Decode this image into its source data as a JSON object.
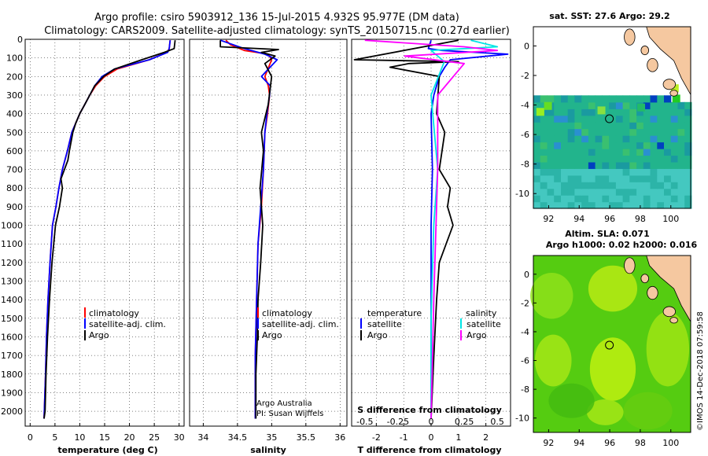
{
  "header": {
    "title_line1": "Argo profile: csiro 5903912_136 15-Jul-2015 4.932S 95.977E (DM data)",
    "title_line2": "Climatology: CARS2009. Satellite-adjusted climatology: synTS_20150715.nc (0.27d earlier)"
  },
  "colors": {
    "climatology": "#ff0000",
    "satellite": "#0000ff",
    "argo": "#000000",
    "sat_salinity": "#00e5e5",
    "argo_salinity": "#ff00ff",
    "land": "#f5c8a0",
    "sst_sea": "#22b48c",
    "sla_sea": "#66dd11"
  },
  "chart_data": [
    {
      "type": "line",
      "name": "temperature",
      "xlabel": "temperature (deg C)",
      "ylabel": "",
      "xlim": [
        -1,
        31
      ],
      "ylim": [
        2080,
        0
      ],
      "xticks": [
        "0",
        "5",
        "10",
        "15",
        "20",
        "25",
        "30"
      ],
      "yticks": [
        "0",
        "100",
        "200",
        "300",
        "400",
        "500",
        "600",
        "700",
        "800",
        "900",
        "1000",
        "1100",
        "1200",
        "1300",
        "1400",
        "1500",
        "1600",
        "1700",
        "1800",
        "1900",
        "2000"
      ],
      "legend": [
        "climatology",
        "satellite-adj. clim.",
        "Argo"
      ],
      "series": [
        {
          "name": "climatology",
          "x": [
            28.2,
            28.0,
            27.6,
            24,
            17.5,
            15,
            13.2,
            12,
            11,
            10,
            9.2,
            8.4,
            7.5,
            6.5,
            5.8,
            5.2,
            4.5,
            4.0,
            3.6,
            3.3,
            3.1,
            2.8
          ],
          "depth": [
            5,
            50,
            70,
            110,
            160,
            200,
            250,
            300,
            350,
            400,
            450,
            500,
            600,
            700,
            800,
            900,
            1000,
            1200,
            1400,
            1600,
            1800,
            2040
          ]
        },
        {
          "name": "satellite",
          "x": [
            28.2,
            28.0,
            27.7,
            24,
            17,
            14.5,
            13,
            12,
            11,
            10,
            9.2,
            8.4,
            7.5,
            6.5,
            5.8,
            5.2,
            4.5,
            4.0,
            3.6,
            3.3,
            3.1,
            2.8
          ],
          "depth": [
            5,
            50,
            70,
            110,
            160,
            200,
            250,
            300,
            350,
            400,
            450,
            500,
            600,
            700,
            800,
            900,
            1000,
            1200,
            1400,
            1600,
            1800,
            2040
          ]
        },
        {
          "name": "Argo",
          "x": [
            29.2,
            29.0,
            27,
            22.5,
            17,
            14.8,
            13,
            12,
            11,
            10,
            9.2,
            8.6,
            7.9,
            7.6,
            6.2,
            6.5,
            5.9,
            5.1,
            4.4,
            3.9,
            3.5,
            3.2,
            3.0,
            2.8
          ],
          "depth": [
            5,
            50,
            70,
            110,
            160,
            200,
            250,
            300,
            350,
            400,
            450,
            500,
            600,
            650,
            750,
            800,
            900,
            1000,
            1200,
            1400,
            1600,
            1800,
            2000,
            2040
          ]
        }
      ]
    },
    {
      "type": "line",
      "name": "salinity",
      "xlabel": "salinity",
      "xlim": [
        33.8,
        36.1
      ],
      "ylim": [
        2080,
        0
      ],
      "xticks": [
        "34",
        "34.5",
        "35",
        "35.5",
        "36"
      ],
      "legend": [
        "climatology",
        "satellite-adj. clim.",
        "Argo"
      ],
      "credit_line1": "Argo Australia",
      "credit_line2": "PI: Susan Wijffels",
      "series": [
        {
          "name": "climatology",
          "x": [
            34.33,
            34.4,
            34.6,
            34.95,
            35.0,
            34.9,
            34.95,
            34.97,
            34.94,
            34.9,
            34.88,
            34.85,
            34.8,
            34.78,
            34.76,
            34.76
          ],
          "depth": [
            5,
            30,
            60,
            80,
            110,
            200,
            250,
            300,
            400,
            500,
            700,
            900,
            1100,
            1400,
            1700,
            2040
          ]
        },
        {
          "name": "satellite",
          "x": [
            34.25,
            34.6,
            34.9,
            35.08,
            34.85,
            34.98,
            34.97,
            34.93,
            34.9,
            34.88,
            34.84,
            34.8,
            34.78,
            34.76,
            34.76
          ],
          "depth": [
            5,
            50,
            80,
            110,
            200,
            250,
            300,
            400,
            500,
            700,
            900,
            1100,
            1400,
            1700,
            2040
          ]
        },
        {
          "name": "Argo",
          "x": [
            34.25,
            34.25,
            35.1,
            34.85,
            35.05,
            34.9,
            35.0,
            34.95,
            34.85,
            34.88,
            34.83,
            34.87,
            34.84,
            34.8,
            34.79,
            34.77,
            34.77
          ],
          "depth": [
            5,
            40,
            55,
            70,
            90,
            130,
            200,
            350,
            500,
            600,
            800,
            1000,
            1200,
            1400,
            1600,
            1800,
            2040
          ]
        }
      ]
    },
    {
      "type": "line",
      "name": "difference",
      "xlabel": "T difference from climatology",
      "x2label": "S difference from climatology",
      "xlim": [
        -2.9,
        2.9
      ],
      "ylim": [
        2080,
        0
      ],
      "xticks": [
        "-2",
        "-1",
        "0",
        "1",
        "2"
      ],
      "x2ticks": [
        "-0.5",
        "-0.25",
        "0",
        "0.25",
        "0.5"
      ],
      "legend_left_title": "temperature",
      "legend_right_title": "salinity",
      "legend": [
        "satellite",
        "Argo",
        "satellite",
        "Argo"
      ],
      "series": [
        {
          "name": "T satellite",
          "x": [
            0,
            -0.1,
            0.4,
            2.8,
            0.7,
            0.5,
            0.3,
            0.1,
            0.0,
            0.05,
            0.0,
            0.0,
            0.0,
            0.0
          ],
          "depth": [
            5,
            50,
            60,
            80,
            110,
            150,
            200,
            300,
            400,
            700,
            1000,
            1400,
            1800,
            2040
          ]
        },
        {
          "name": "T Argo",
          "x": [
            1.0,
            -2.8,
            1.0,
            -0.8,
            -1.5,
            0.3,
            0.2,
            0.5,
            0.3,
            0.7,
            0.6,
            0.8,
            0.3,
            0.2,
            0.1,
            0.0
          ],
          "depth": [
            5,
            110,
            120,
            130,
            150,
            200,
            400,
            500,
            700,
            800,
            900,
            1000,
            1200,
            1400,
            1700,
            2040
          ]
        },
        {
          "name": "S satellite",
          "x": [
            0.3,
            0.5,
            0.0,
            0.1,
            0.0,
            0.05,
            0.02,
            0.0,
            0.0
          ],
          "depth": [
            5,
            40,
            60,
            120,
            300,
            700,
            1000,
            1500,
            2040
          ]
        },
        {
          "name": "S Argo",
          "x": [
            -0.5,
            0.25,
            0.5,
            -0.2,
            0.25,
            0.05,
            0.05,
            0.02,
            0.0
          ],
          "depth": [
            5,
            40,
            60,
            90,
            130,
            300,
            700,
            1400,
            2040
          ]
        }
      ]
    },
    {
      "type": "heatmap",
      "name": "sst_map",
      "title": "sat. SST: 27.6 Argo: 29.2",
      "xlim": [
        91,
        101.3
      ],
      "ylim": [
        -11,
        1.3
      ],
      "xticks": [
        "92",
        "94",
        "96",
        "98",
        "100"
      ],
      "yticks": [
        "0",
        "-2",
        "-4",
        "-6",
        "-8",
        "-10"
      ],
      "marker_lon": 95.977,
      "marker_lat": -4.932
    },
    {
      "type": "heatmap",
      "name": "sla_map",
      "title_line1": "Altim. SLA: 0.071",
      "title_line2": "Argo h1000: 0.02 h2000: 0.016",
      "xlim": [
        91,
        101.3
      ],
      "ylim": [
        -11,
        1.3
      ],
      "xticks": [
        "92",
        "94",
        "96",
        "98",
        "100"
      ],
      "yticks": [
        "0",
        "-2",
        "-4",
        "-6",
        "-8",
        "-10"
      ],
      "marker_lon": 95.977,
      "marker_lat": -4.932
    }
  ],
  "footer": {
    "timestamp": "©IMOS 14-Dec-2018 07:59:58"
  }
}
